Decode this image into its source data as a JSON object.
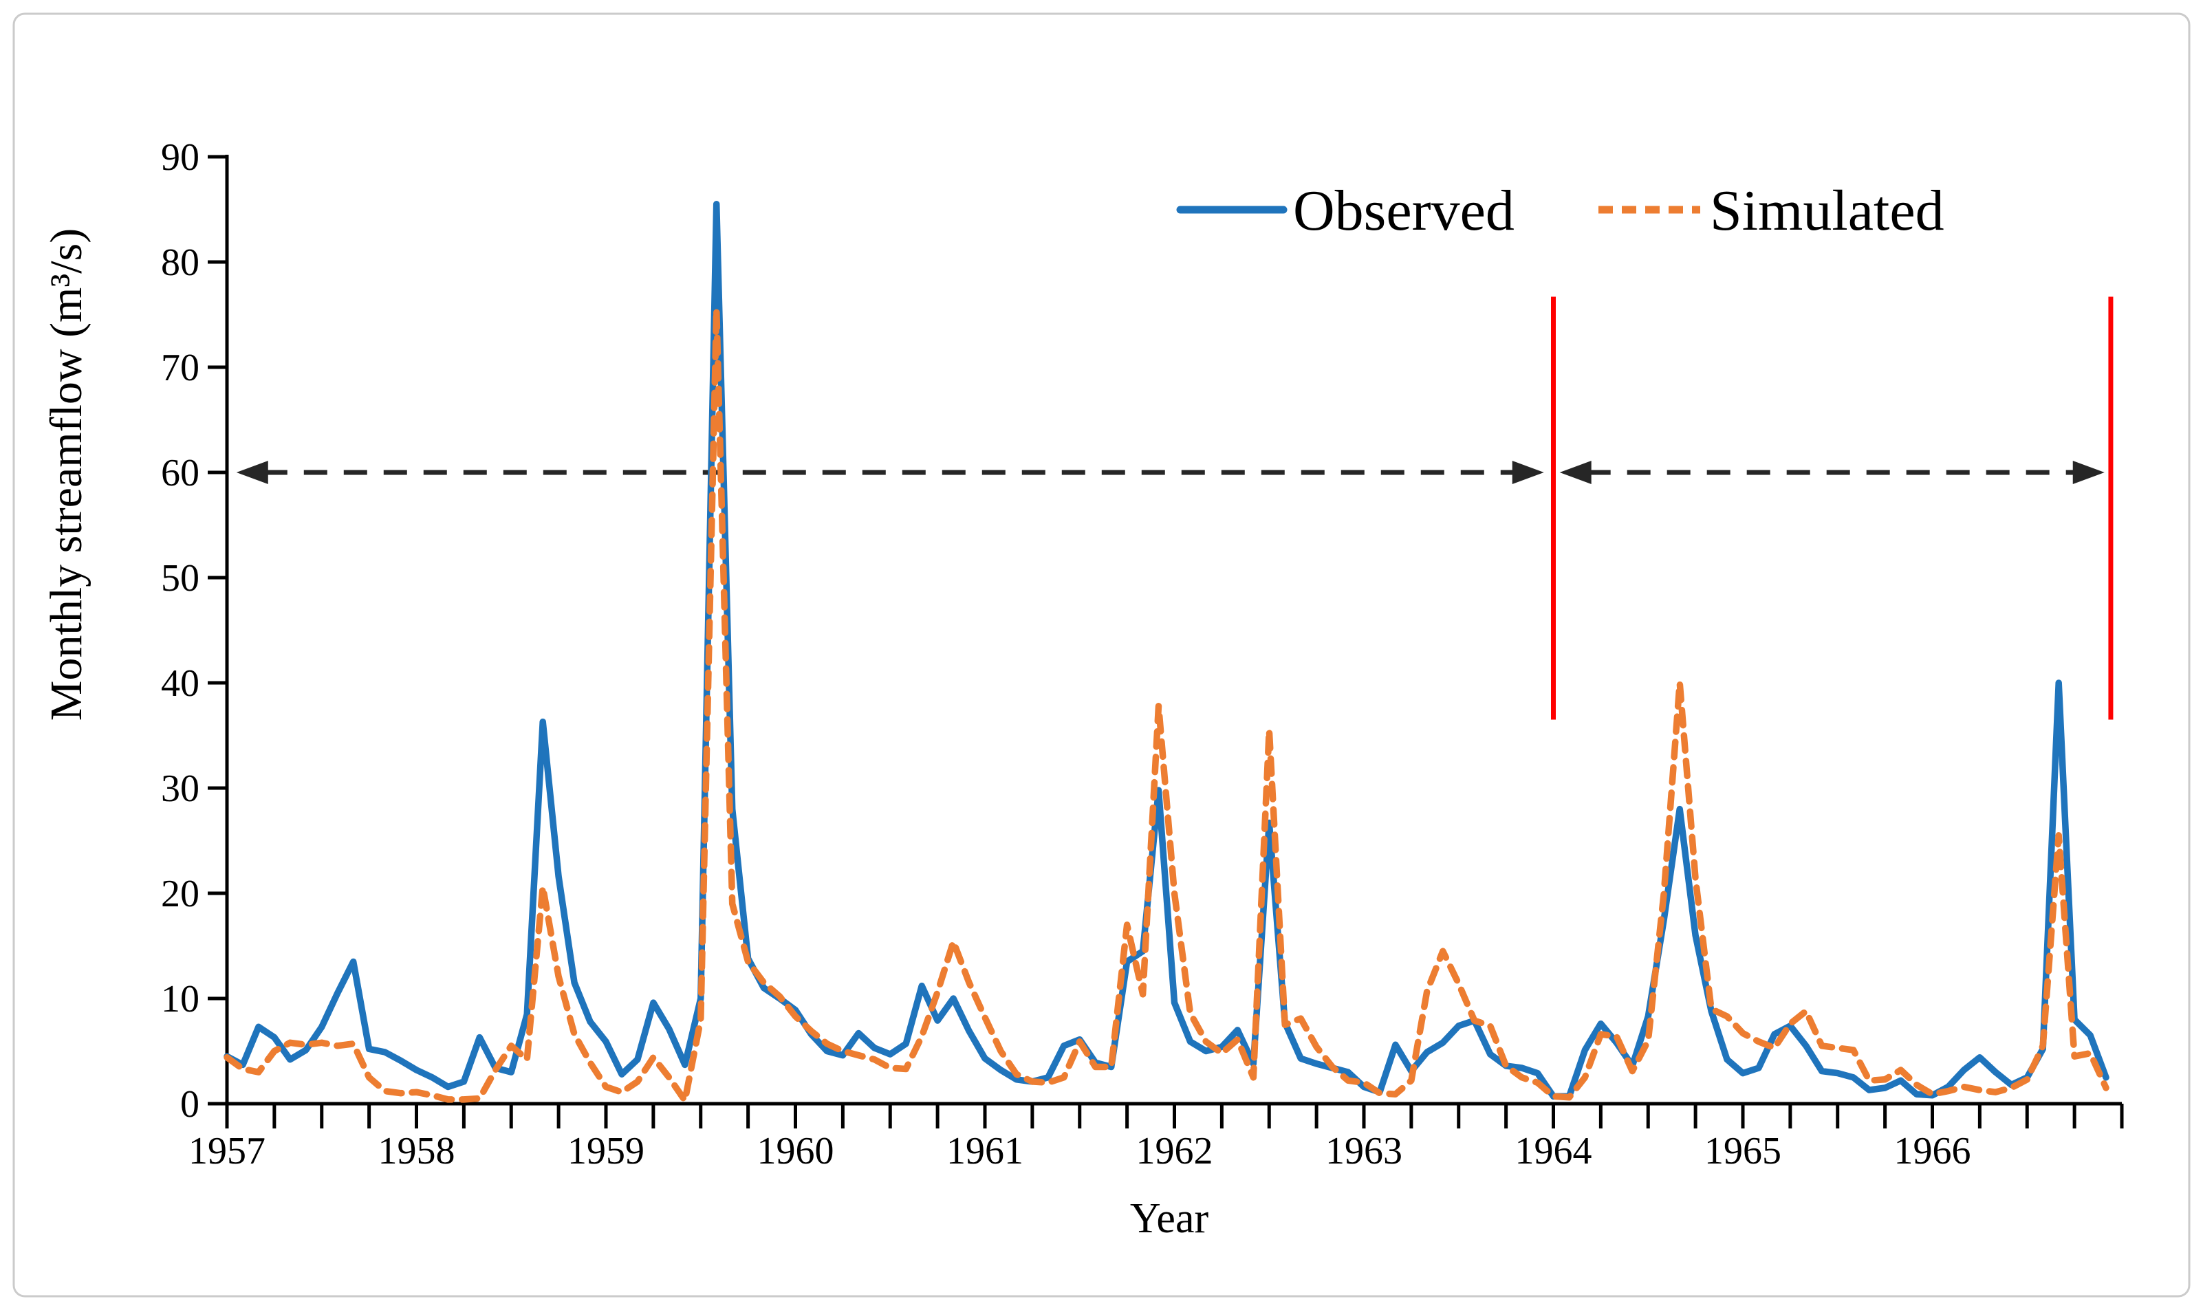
{
  "chart_data": {
    "type": "line",
    "title": "",
    "xlabel": "Year",
    "ylabel": "Monthly streamflow (m³/s)",
    "x_years": [
      1957,
      1958,
      1959,
      1960,
      1961,
      1962,
      1963,
      1964,
      1965,
      1966
    ],
    "x_resolution": "monthly",
    "n_points": 120,
    "ylim": [
      0,
      90
    ],
    "yticks": [
      0,
      10,
      20,
      30,
      40,
      50,
      60,
      70,
      80,
      90
    ],
    "x_minor_tick_interval_months": 3,
    "grid": false,
    "legend_position": "top-center-right",
    "colors": {
      "observed": "#1F74BC",
      "simulated": "#ED7D31",
      "period_boundary": "#FF0000",
      "period_arrow": "#262626",
      "axis": "#000000",
      "frame_border": "#CBCBCB",
      "background": "#FFFFFF"
    },
    "series": [
      {
        "name": "Observed",
        "color": "#1F74BC",
        "line_style": "solid",
        "values": [
          4.5,
          3.7,
          7.3,
          6.3,
          4.2,
          5.1,
          7.3,
          10.5,
          13.5,
          5.2,
          4.9,
          4.1,
          3.2,
          2.5,
          1.6,
          2.1,
          6.3,
          3.4,
          3.0,
          8.5,
          36.3,
          21.6,
          11.5,
          7.8,
          5.9,
          2.8,
          4.2,
          9.6,
          7.1,
          3.7,
          10.0,
          85.5,
          28.0,
          13.8,
          11.0,
          10.0,
          8.9,
          6.6,
          5.0,
          4.6,
          6.7,
          5.3,
          4.7,
          5.7,
          11.2,
          7.9,
          10.0,
          6.9,
          4.3,
          3.2,
          2.3,
          2.1,
          2.5,
          5.5,
          6.1,
          3.9,
          3.5,
          13.5,
          14.5,
          29.8,
          9.6,
          5.9,
          5.0,
          5.4,
          7.0,
          3.8,
          26.7,
          7.7,
          4.3,
          3.8,
          3.4,
          3.0,
          1.6,
          1.1,
          5.6,
          3.1,
          4.9,
          5.8,
          7.4,
          7.9,
          4.7,
          3.6,
          3.4,
          2.9,
          0.7,
          0.7,
          5.1,
          7.6,
          5.8,
          3.6,
          8.3,
          17.5,
          28.0,
          16.0,
          8.8,
          4.2,
          2.9,
          3.4,
          6.6,
          7.4,
          5.5,
          3.1,
          2.9,
          2.5,
          1.3,
          1.5,
          2.2,
          0.9,
          0.8,
          1.6,
          3.2,
          4.4,
          3.0,
          1.8,
          2.5,
          5.2,
          40.0,
          8.0,
          6.5,
          2.5
        ]
      },
      {
        "name": "Simulated",
        "color": "#ED7D31",
        "line_style": "dashed",
        "values": [
          4.4,
          3.3,
          3.0,
          5.0,
          5.8,
          5.6,
          5.8,
          5.5,
          5.7,
          2.5,
          1.2,
          1.0,
          1.1,
          0.8,
          0.4,
          0.4,
          0.5,
          3.2,
          5.5,
          4.2,
          20.6,
          12.1,
          6.6,
          3.9,
          1.6,
          1.1,
          2.1,
          4.4,
          2.5,
          0.3,
          8.0,
          75.5,
          19.0,
          13.5,
          11.5,
          10.2,
          8.3,
          6.9,
          5.7,
          5.0,
          4.6,
          4.2,
          3.4,
          3.3,
          6.4,
          10.6,
          15.4,
          11.5,
          8.2,
          5.0,
          2.8,
          2.1,
          2.0,
          2.5,
          5.9,
          3.5,
          3.5,
          17.0,
          10.4,
          37.8,
          20.0,
          8.6,
          5.9,
          4.8,
          6.1,
          2.5,
          35.5,
          7.5,
          8.1,
          5.4,
          3.5,
          2.2,
          2.0,
          1.0,
          0.9,
          2.2,
          10.7,
          14.5,
          11.4,
          7.9,
          7.4,
          3.6,
          2.5,
          2.0,
          0.7,
          0.6,
          2.5,
          6.6,
          6.4,
          3.1,
          6.0,
          20.0,
          40.0,
          21.4,
          9.0,
          8.3,
          6.7,
          5.9,
          5.3,
          7.6,
          8.8,
          5.5,
          5.3,
          5.1,
          2.2,
          2.3,
          3.2,
          1.8,
          0.9,
          1.2,
          1.6,
          1.3,
          1.1,
          1.5,
          2.3,
          5.5,
          25.5,
          4.5,
          4.8,
          1.5
        ]
      }
    ],
    "annotations": {
      "red_vertical_lines": [
        {
          "x_label": "Jan 1964",
          "x_month_index": 84,
          "y_from": 36.5,
          "y_to": 76.7,
          "color": "#FF0000"
        },
        {
          "x_label": "Dec 1966",
          "x_month_index": 119.3,
          "y_from": 36.5,
          "y_to": 76.7,
          "color": "#FF0000"
        }
      ],
      "dashed_double_arrows": [
        {
          "meaning": "first period span",
          "y_value": 60,
          "from_month_index": 0.6,
          "to_month_index": 83.4,
          "color": "#262626"
        },
        {
          "meaning": "second period span",
          "y_value": 60,
          "from_month_index": 84.4,
          "to_month_index": 118.9,
          "color": "#262626"
        }
      ]
    }
  }
}
